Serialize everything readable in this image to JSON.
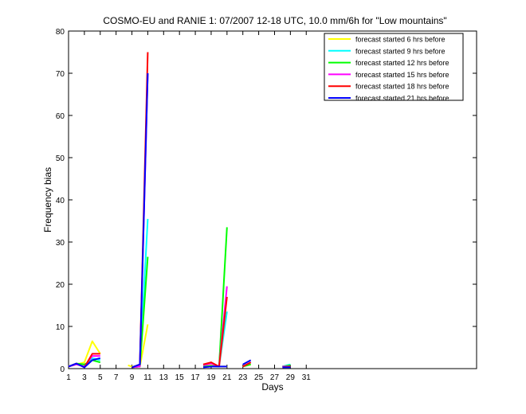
{
  "chart_data": {
    "type": "line",
    "title": "COSMO-EU and RANIE 1: 07/2007 12-18 UTC, 10.0 mm/6h for \"Low mountains\"",
    "xlabel": "Days",
    "ylabel": "Frequency bias",
    "xlim": [
      1,
      52.5
    ],
    "ylim": [
      0,
      80
    ],
    "xticks": [
      1,
      3,
      5,
      7,
      9,
      11,
      13,
      15,
      17,
      19,
      21,
      23,
      25,
      27,
      29,
      31
    ],
    "yticks": [
      0,
      10,
      20,
      30,
      40,
      50,
      60,
      70,
      80
    ],
    "grid": false,
    "legend_position": "top-right",
    "series": [
      {
        "name": "forecast started 6 hrs before",
        "color": "#ffff00",
        "points": [
          [
            1,
            0.5
          ],
          [
            2,
            1.0
          ],
          [
            3,
            1.5
          ],
          [
            4,
            6.5
          ],
          [
            5,
            3.5
          ],
          [
            null,
            null
          ],
          [
            8.5,
            0.8
          ],
          [
            9,
            0.5
          ],
          [
            10,
            0.5
          ],
          [
            11,
            10.5
          ],
          [
            null,
            null
          ],
          [
            18,
            0.5
          ],
          [
            19,
            0.8
          ],
          [
            20,
            0.5
          ],
          [
            21,
            0.5
          ],
          [
            null,
            null
          ],
          [
            23,
            0.5
          ],
          [
            24,
            1.0
          ],
          [
            null,
            null
          ],
          [
            28,
            0.5
          ],
          [
            29,
            0.5
          ]
        ]
      },
      {
        "name": "forecast started 9 hrs before",
        "color": "#00ffff",
        "points": [
          [
            1,
            0.5
          ],
          [
            2,
            1.0
          ],
          [
            3,
            0.5
          ],
          [
            4,
            2.5
          ],
          [
            5,
            2.0
          ],
          [
            null,
            null
          ],
          [
            9,
            0.3
          ],
          [
            10,
            0.5
          ],
          [
            11,
            35.5
          ],
          [
            null,
            null
          ],
          [
            18,
            0.5
          ],
          [
            19,
            0.6
          ],
          [
            20,
            0.5
          ],
          [
            21,
            13.5
          ],
          [
            null,
            null
          ],
          [
            23,
            0.5
          ],
          [
            24,
            1.5
          ],
          [
            null,
            null
          ],
          [
            28,
            0.5
          ],
          [
            29,
            1.0
          ]
        ]
      },
      {
        "name": "forecast started 12 hrs before",
        "color": "#00ff00",
        "points": [
          [
            1,
            0.5
          ],
          [
            2,
            1.2
          ],
          [
            3,
            1.0
          ],
          [
            4,
            2.0
          ],
          [
            5,
            1.5
          ],
          [
            null,
            null
          ],
          [
            9,
            0.3
          ],
          [
            10,
            0.5
          ],
          [
            11,
            26.5
          ],
          [
            null,
            null
          ],
          [
            18,
            0.5
          ],
          [
            19,
            0.6
          ],
          [
            20,
            0.5
          ],
          [
            21,
            33.5
          ],
          [
            null,
            null
          ],
          [
            23,
            0.5
          ],
          [
            24,
            1.0
          ],
          [
            null,
            null
          ],
          [
            28,
            0.5
          ],
          [
            29,
            0.8
          ]
        ]
      },
      {
        "name": "forecast started 15 hrs before",
        "color": "#ff00ff",
        "points": [
          [
            1,
            0.5
          ],
          [
            2,
            1.0
          ],
          [
            3,
            0.5
          ],
          [
            4,
            3.0
          ],
          [
            5,
            3.0
          ],
          [
            null,
            null
          ],
          [
            9,
            0.3
          ],
          [
            10,
            0.5
          ],
          [
            11,
            70.0
          ],
          [
            null,
            null
          ],
          [
            18,
            0.8
          ],
          [
            19,
            1.2
          ],
          [
            20,
            0.5
          ],
          [
            21,
            19.5
          ],
          [
            null,
            null
          ],
          [
            23,
            0.5
          ],
          [
            24,
            1.5
          ],
          [
            null,
            null
          ],
          [
            28,
            0.5
          ],
          [
            29,
            0.5
          ]
        ]
      },
      {
        "name": "forecast started 18 hrs before",
        "color": "#ff0000",
        "points": [
          [
            1,
            0.5
          ],
          [
            2,
            1.2
          ],
          [
            3,
            0.3
          ],
          [
            4,
            3.5
          ],
          [
            5,
            3.5
          ],
          [
            null,
            null
          ],
          [
            9,
            0.3
          ],
          [
            10,
            1.0
          ],
          [
            11,
            75.0
          ],
          [
            null,
            null
          ],
          [
            18,
            1.0
          ],
          [
            19,
            1.5
          ],
          [
            20,
            0.5
          ],
          [
            21,
            17.0
          ],
          [
            null,
            null
          ],
          [
            23,
            0.5
          ],
          [
            24,
            1.5
          ],
          [
            null,
            null
          ],
          [
            28,
            0.3
          ],
          [
            29,
            0.5
          ]
        ]
      },
      {
        "name": "forecast started 21 hrs before",
        "color": "#0000ff",
        "points": [
          [
            1,
            0.5
          ],
          [
            2,
            1.2
          ],
          [
            3,
            0.3
          ],
          [
            4,
            2.0
          ],
          [
            5,
            2.5
          ],
          [
            null,
            null
          ],
          [
            9,
            0.3
          ],
          [
            10,
            1.0
          ],
          [
            11,
            70.0
          ],
          [
            null,
            null
          ],
          [
            18,
            0.3
          ],
          [
            19,
            0.5
          ],
          [
            20,
            0.5
          ],
          [
            21,
            0.5
          ],
          [
            null,
            null
          ],
          [
            23,
            1.0
          ],
          [
            24,
            2.0
          ],
          [
            null,
            null
          ],
          [
            28,
            0.3
          ],
          [
            29,
            0.3
          ]
        ]
      }
    ]
  }
}
